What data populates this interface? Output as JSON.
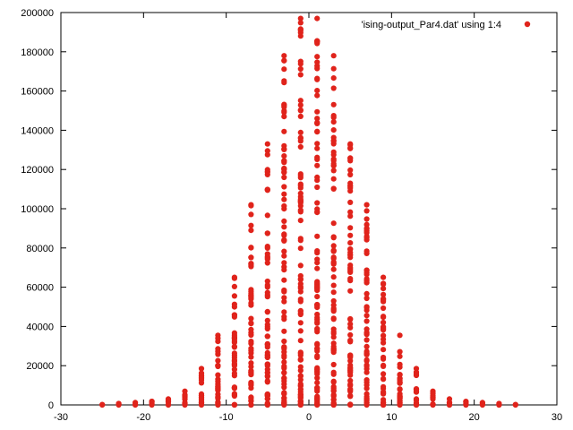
{
  "chart_data": {
    "type": "scatter",
    "title": "",
    "xlabel": "",
    "ylabel": "",
    "xlim": [
      -30,
      30
    ],
    "ylim": [
      0,
      200000
    ],
    "x_ticks": [
      -30,
      -20,
      -10,
      0,
      10,
      20,
      30
    ],
    "y_ticks": [
      0,
      20000,
      40000,
      60000,
      80000,
      100000,
      120000,
      140000,
      160000,
      180000,
      200000
    ],
    "grid": false,
    "legend_position": "top-right",
    "series": [
      {
        "name": "'ising-output_Par4.dat' using 1:4",
        "color": "#e0231b",
        "columns": [
          {
            "x": -25,
            "ymax": 200,
            "n": 2
          },
          {
            "x": -23,
            "ymax": 700,
            "n": 3
          },
          {
            "x": -21,
            "ymax": 1200,
            "n": 3
          },
          {
            "x": -19,
            "ymax": 1800,
            "n": 4
          },
          {
            "x": -17,
            "ymax": 3000,
            "n": 6
          },
          {
            "x": -15,
            "ymax": 7000,
            "n": 10
          },
          {
            "x": -13,
            "ymax": 18500,
            "n": 20
          },
          {
            "x": -11,
            "ymax": 35500,
            "n": 30
          },
          {
            "x": -9,
            "ymax": 65000,
            "n": 40
          },
          {
            "x": -7,
            "ymax": 102000,
            "n": 55
          },
          {
            "x": -5,
            "ymax": 133000,
            "n": 65
          },
          {
            "x": -3,
            "ymax": 178000,
            "n": 80
          },
          {
            "x": -1,
            "ymax": 197000,
            "n": 90
          },
          {
            "x": 1,
            "ymax": 197000,
            "n": 90
          },
          {
            "x": 3,
            "ymax": 178000,
            "n": 80
          },
          {
            "x": 5,
            "ymax": 133000,
            "n": 65
          },
          {
            "x": 7,
            "ymax": 102000,
            "n": 55
          },
          {
            "x": 9,
            "ymax": 65000,
            "n": 40
          },
          {
            "x": 11,
            "ymax": 35500,
            "n": 30
          },
          {
            "x": 13,
            "ymax": 18500,
            "n": 20
          },
          {
            "x": 15,
            "ymax": 7000,
            "n": 10
          },
          {
            "x": 17,
            "ymax": 3000,
            "n": 6
          },
          {
            "x": 19,
            "ymax": 1800,
            "n": 4
          },
          {
            "x": 21,
            "ymax": 1200,
            "n": 3
          },
          {
            "x": 23,
            "ymax": 700,
            "n": 3
          },
          {
            "x": 25,
            "ymax": 200,
            "n": 2
          }
        ]
      }
    ]
  }
}
